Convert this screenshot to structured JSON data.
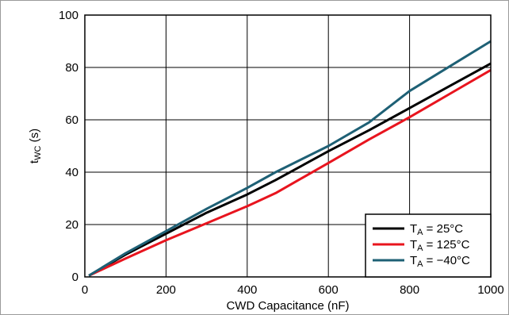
{
  "chart_data": {
    "type": "line",
    "title": "",
    "xlabel": "CWD Capacitance (nF)",
    "ylabel_main": "t",
    "ylabel_sub": "WC",
    "ylabel_unit": " (s)",
    "xlim": [
      0,
      1000
    ],
    "ylim": [
      0,
      100
    ],
    "xticks": [
      0,
      200,
      400,
      600,
      800,
      1000
    ],
    "yticks": [
      0,
      20,
      40,
      60,
      80,
      100
    ],
    "grid": true,
    "legend_position": "bottom-right",
    "series": [
      {
        "name_main": "T",
        "name_sub": "A",
        "name_rest": " = 25°C",
        "color": "#000000",
        "points": [
          [
            10,
            0.5
          ],
          [
            100,
            8.5
          ],
          [
            200,
            16.5
          ],
          [
            300,
            24.5
          ],
          [
            400,
            31.5
          ],
          [
            470,
            37
          ],
          [
            600,
            48
          ],
          [
            700,
            56
          ],
          [
            800,
            64.5
          ],
          [
            900,
            73
          ],
          [
            1000,
            81.5
          ]
        ]
      },
      {
        "name_main": "T",
        "name_sub": "A",
        "name_rest": " = 125°C",
        "color": "#e8141e",
        "points": [
          [
            10,
            0.5
          ],
          [
            100,
            7
          ],
          [
            200,
            14
          ],
          [
            300,
            20.5
          ],
          [
            400,
            27
          ],
          [
            470,
            32
          ],
          [
            600,
            43.5
          ],
          [
            700,
            52.5
          ],
          [
            800,
            61
          ],
          [
            900,
            70
          ],
          [
            1000,
            79
          ]
        ]
      },
      {
        "name_main": "T",
        "name_sub": "A",
        "name_rest": " = −40°C",
        "color": "#1e6075",
        "points": [
          [
            10,
            0.5
          ],
          [
            100,
            9
          ],
          [
            200,
            17.5
          ],
          [
            300,
            26
          ],
          [
            400,
            34
          ],
          [
            470,
            40
          ],
          [
            600,
            50
          ],
          [
            700,
            59
          ],
          [
            800,
            71
          ],
          [
            900,
            80.5
          ],
          [
            1000,
            90
          ]
        ]
      }
    ]
  }
}
